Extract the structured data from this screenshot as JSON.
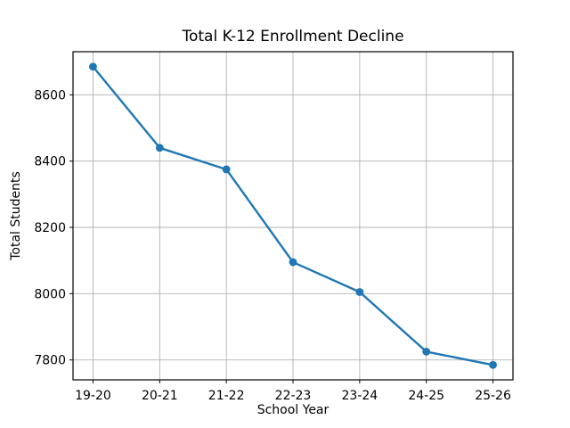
{
  "chart_data": {
    "type": "line",
    "title": "Total K-12 Enrollment Decline",
    "xlabel": "School Year",
    "ylabel": "Total Students",
    "categories": [
      "19-20",
      "20-21",
      "21-22",
      "22-23",
      "23-24",
      "24-25",
      "25-26"
    ],
    "values": [
      8685,
      8440,
      8375,
      8095,
      8005,
      7825,
      7785
    ],
    "yticks": [
      7800,
      8000,
      8200,
      8400,
      8600
    ],
    "ylim": [
      7740,
      8730
    ],
    "xlim": [
      -0.3,
      6.3
    ],
    "grid": true,
    "legend": false,
    "marker": "circle",
    "colors": {
      "line": "#1f77b4",
      "grid": "#b0b0b0",
      "axis": "#000000",
      "text": "#000000",
      "background": "#ffffff"
    }
  }
}
